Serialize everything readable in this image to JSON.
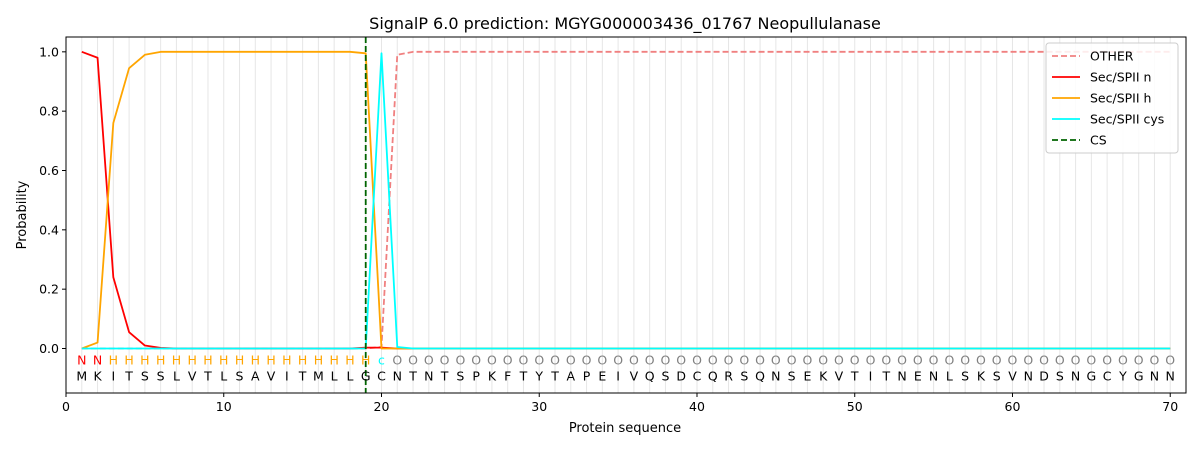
{
  "chart_data": {
    "type": "line",
    "title": "SignalP 6.0 prediction: MGYG000003436_01767 Neopullulanase",
    "xlabel": "Protein sequence",
    "ylabel": "Probability",
    "xlim": [
      0,
      71
    ],
    "ylim": [
      -0.15,
      1.05
    ],
    "xticks": [
      0,
      10,
      20,
      30,
      40,
      50,
      60,
      70
    ],
    "yticks": [
      0.0,
      0.2,
      0.4,
      0.6,
      0.8,
      1.0
    ],
    "x_tick_labels": [
      "0",
      "10",
      "20",
      "30",
      "40",
      "50",
      "60",
      "70"
    ],
    "y_tick_labels": [
      "0.0",
      "0.2",
      "0.4",
      "0.6",
      "0.8",
      "1.0"
    ],
    "grid": "vertical lines at each residue",
    "legend_position": "top-right",
    "sequence": "MKITSSLVTLSAVITMLLGCNTNTSPKFTYTAPEIVQSDCQRSQNSEKVTITNENLSKSVNDSNGCYGNN",
    "labels": "NNHHHHHHHHHHHHHHHHHCOOOOOOOOOOOOOOOOOOOOOOOOOOOOOOOOOOOOOOOOOOOOOOOOOO",
    "label_colors": {
      "N": "#ff0000",
      "H": "#ffa500",
      "C": "#00ffff",
      "O": "#808080"
    },
    "series": [
      {
        "name": "OTHER",
        "color": "#f08080",
        "dash": "dashed",
        "values": [
          0,
          0,
          0,
          0,
          0,
          0,
          0,
          0,
          0,
          0,
          0,
          0,
          0,
          0,
          0,
          0,
          0,
          0,
          0,
          0.005,
          0.99,
          1,
          1,
          1,
          1,
          1,
          1,
          1,
          1,
          1,
          1,
          1,
          1,
          1,
          1,
          1,
          1,
          1,
          1,
          1,
          1,
          1,
          1,
          1,
          1,
          1,
          1,
          1,
          1,
          1,
          1,
          1,
          1,
          1,
          1,
          1,
          1,
          1,
          1,
          1,
          1,
          1,
          1,
          1,
          1,
          1,
          1,
          1,
          1,
          1
        ]
      },
      {
        "name": "Sec/SPII n",
        "color": "#ff0000",
        "dash": "solid",
        "values": [
          1.0,
          0.98,
          0.24,
          0.055,
          0.01,
          0.002,
          0,
          0,
          0,
          0,
          0,
          0,
          0,
          0,
          0,
          0,
          0,
          0,
          0.003,
          0.003,
          0,
          0,
          0,
          0,
          0,
          0,
          0,
          0,
          0,
          0,
          0,
          0,
          0,
          0,
          0,
          0,
          0,
          0,
          0,
          0,
          0,
          0,
          0,
          0,
          0,
          0,
          0,
          0,
          0,
          0,
          0,
          0,
          0,
          0,
          0,
          0,
          0,
          0,
          0,
          0,
          0,
          0,
          0,
          0,
          0,
          0,
          0,
          0,
          0,
          0
        ]
      },
      {
        "name": "Sec/SPII h",
        "color": "#ffa500",
        "dash": "solid",
        "values": [
          0,
          0.02,
          0.76,
          0.945,
          0.99,
          1.0,
          1.0,
          1.0,
          1.0,
          1.0,
          1.0,
          1.0,
          1.0,
          1.0,
          1.0,
          1.0,
          1.0,
          1.0,
          0.995,
          0,
          0,
          0,
          0,
          0,
          0,
          0,
          0,
          0,
          0,
          0,
          0,
          0,
          0,
          0,
          0,
          0,
          0,
          0,
          0,
          0,
          0,
          0,
          0,
          0,
          0,
          0,
          0,
          0,
          0,
          0,
          0,
          0,
          0,
          0,
          0,
          0,
          0,
          0,
          0,
          0,
          0,
          0,
          0,
          0,
          0,
          0,
          0,
          0,
          0,
          0
        ]
      },
      {
        "name": "Sec/SPII cys",
        "color": "#00ffff",
        "dash": "solid",
        "values": [
          0,
          0,
          0,
          0,
          0,
          0,
          0,
          0,
          0,
          0,
          0,
          0,
          0,
          0,
          0,
          0,
          0,
          0,
          0,
          0.995,
          0.005,
          0,
          0,
          0,
          0,
          0,
          0,
          0,
          0,
          0,
          0,
          0,
          0,
          0,
          0,
          0,
          0,
          0,
          0,
          0,
          0,
          0,
          0,
          0,
          0,
          0,
          0,
          0,
          0,
          0,
          0,
          0,
          0,
          0,
          0,
          0,
          0,
          0,
          0,
          0,
          0,
          0,
          0,
          0,
          0,
          0,
          0,
          0,
          0,
          0
        ]
      }
    ],
    "cleavage_site": {
      "name": "CS",
      "color": "#006400",
      "x": 19
    }
  }
}
